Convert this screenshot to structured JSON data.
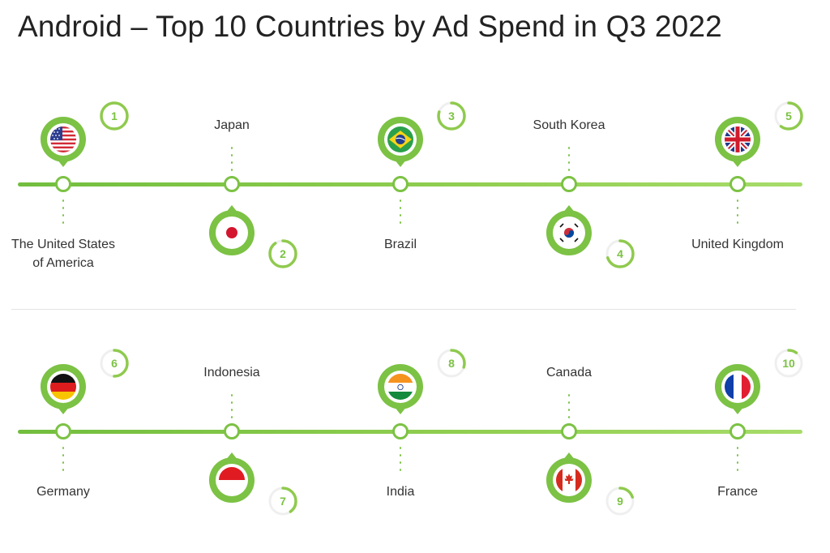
{
  "title": "Android – Top 10 Countries by Ad Spend in Q3 2022",
  "accent": "#7cc244",
  "rows": [
    [
      {
        "rank": 1,
        "label": [
          "The United States",
          "of America"
        ],
        "flag": "us-flag-icon",
        "share": 1.0
      },
      {
        "rank": 2,
        "label": [
          "Japan"
        ],
        "flag": "jp-flag-icon",
        "share": 0.9
      },
      {
        "rank": 3,
        "label": [
          "Brazil"
        ],
        "flag": "br-flag-icon",
        "share": 0.8
      },
      {
        "rank": 4,
        "label": [
          "South Korea"
        ],
        "flag": "kr-flag-icon",
        "share": 0.7
      },
      {
        "rank": 5,
        "label": [
          "United Kingdom"
        ],
        "flag": "gb-flag-icon",
        "share": 0.6
      }
    ],
    [
      {
        "rank": 6,
        "label": [
          "Germany"
        ],
        "flag": "de-flag-icon",
        "share": 0.5
      },
      {
        "rank": 7,
        "label": [
          "Indonesia"
        ],
        "flag": "id-flag-icon",
        "share": 0.4
      },
      {
        "rank": 8,
        "label": [
          "India"
        ],
        "flag": "in-flag-icon",
        "share": 0.3
      },
      {
        "rank": 9,
        "label": [
          "Canada"
        ],
        "flag": "ca-flag-icon",
        "share": 0.2
      },
      {
        "rank": 10,
        "label": [
          "France"
        ],
        "flag": "fr-flag-icon",
        "share": 0.1
      }
    ]
  ]
}
